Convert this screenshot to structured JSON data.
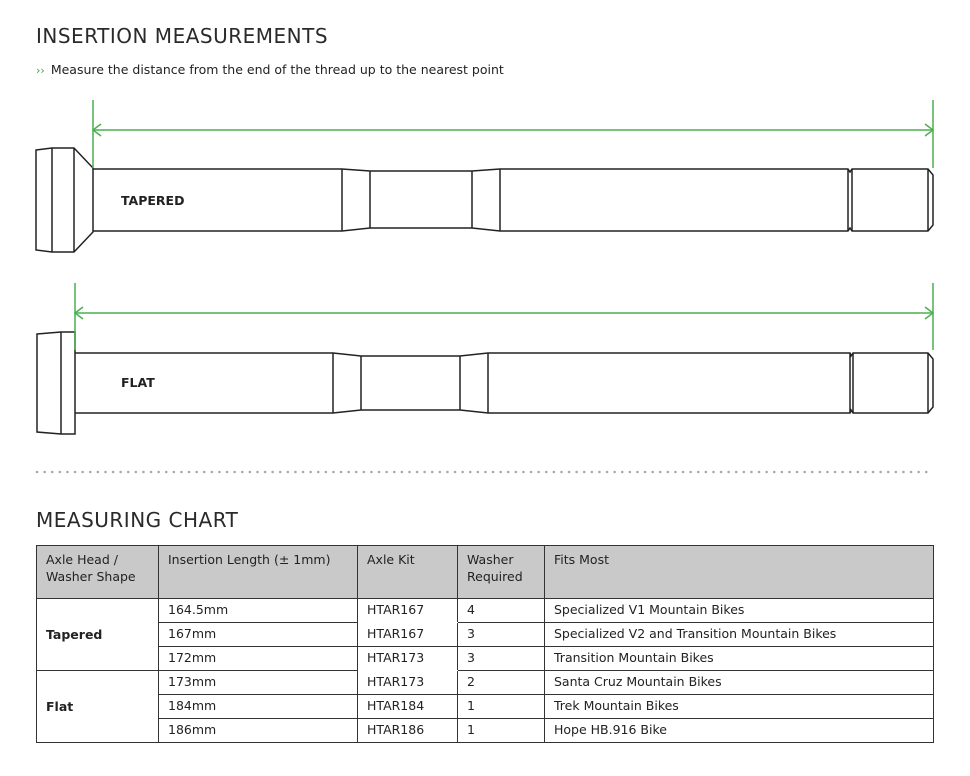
{
  "insertion": {
    "title": "INSERTION MEASUREMENTS",
    "instruction_icon": "double-chevron-right-icon",
    "instruction": "Measure the distance from the end of the thread up to the nearest point",
    "axles": [
      {
        "label": "TAPERED"
      },
      {
        "label": "FLAT"
      }
    ],
    "accent_color": "#4caf50"
  },
  "chart": {
    "title": "MEASURING CHART",
    "headers": [
      "Axle Head / Washer Shape",
      "Insertion Length (± 1mm)",
      "Axle Kit",
      "Washer Required",
      "Fits Most"
    ],
    "groups": [
      {
        "shape": "Tapered",
        "rows": [
          {
            "length": "164.5mm",
            "kit": "HTAR167",
            "washer": "4",
            "fits": "Specialized V1 Mountain Bikes"
          },
          {
            "length": "167mm",
            "kit": "HTAR167",
            "washer": "3",
            "fits": "Specialized V2 and Transition Mountain Bikes"
          },
          {
            "length": "172mm",
            "kit": "HTAR173",
            "washer": "3",
            "fits": "Transition Mountain Bikes"
          }
        ]
      },
      {
        "shape": "Flat",
        "rows": [
          {
            "length": "173mm",
            "kit": "HTAR173",
            "washer": "2",
            "fits": "Santa Cruz Mountain Bikes"
          },
          {
            "length": "184mm",
            "kit": "HTAR184",
            "washer": "1",
            "fits": "Trek Mountain Bikes"
          },
          {
            "length": "186mm",
            "kit": "HTAR186",
            "washer": "1",
            "fits": "Hope HB.916 Bike"
          }
        ]
      }
    ]
  }
}
